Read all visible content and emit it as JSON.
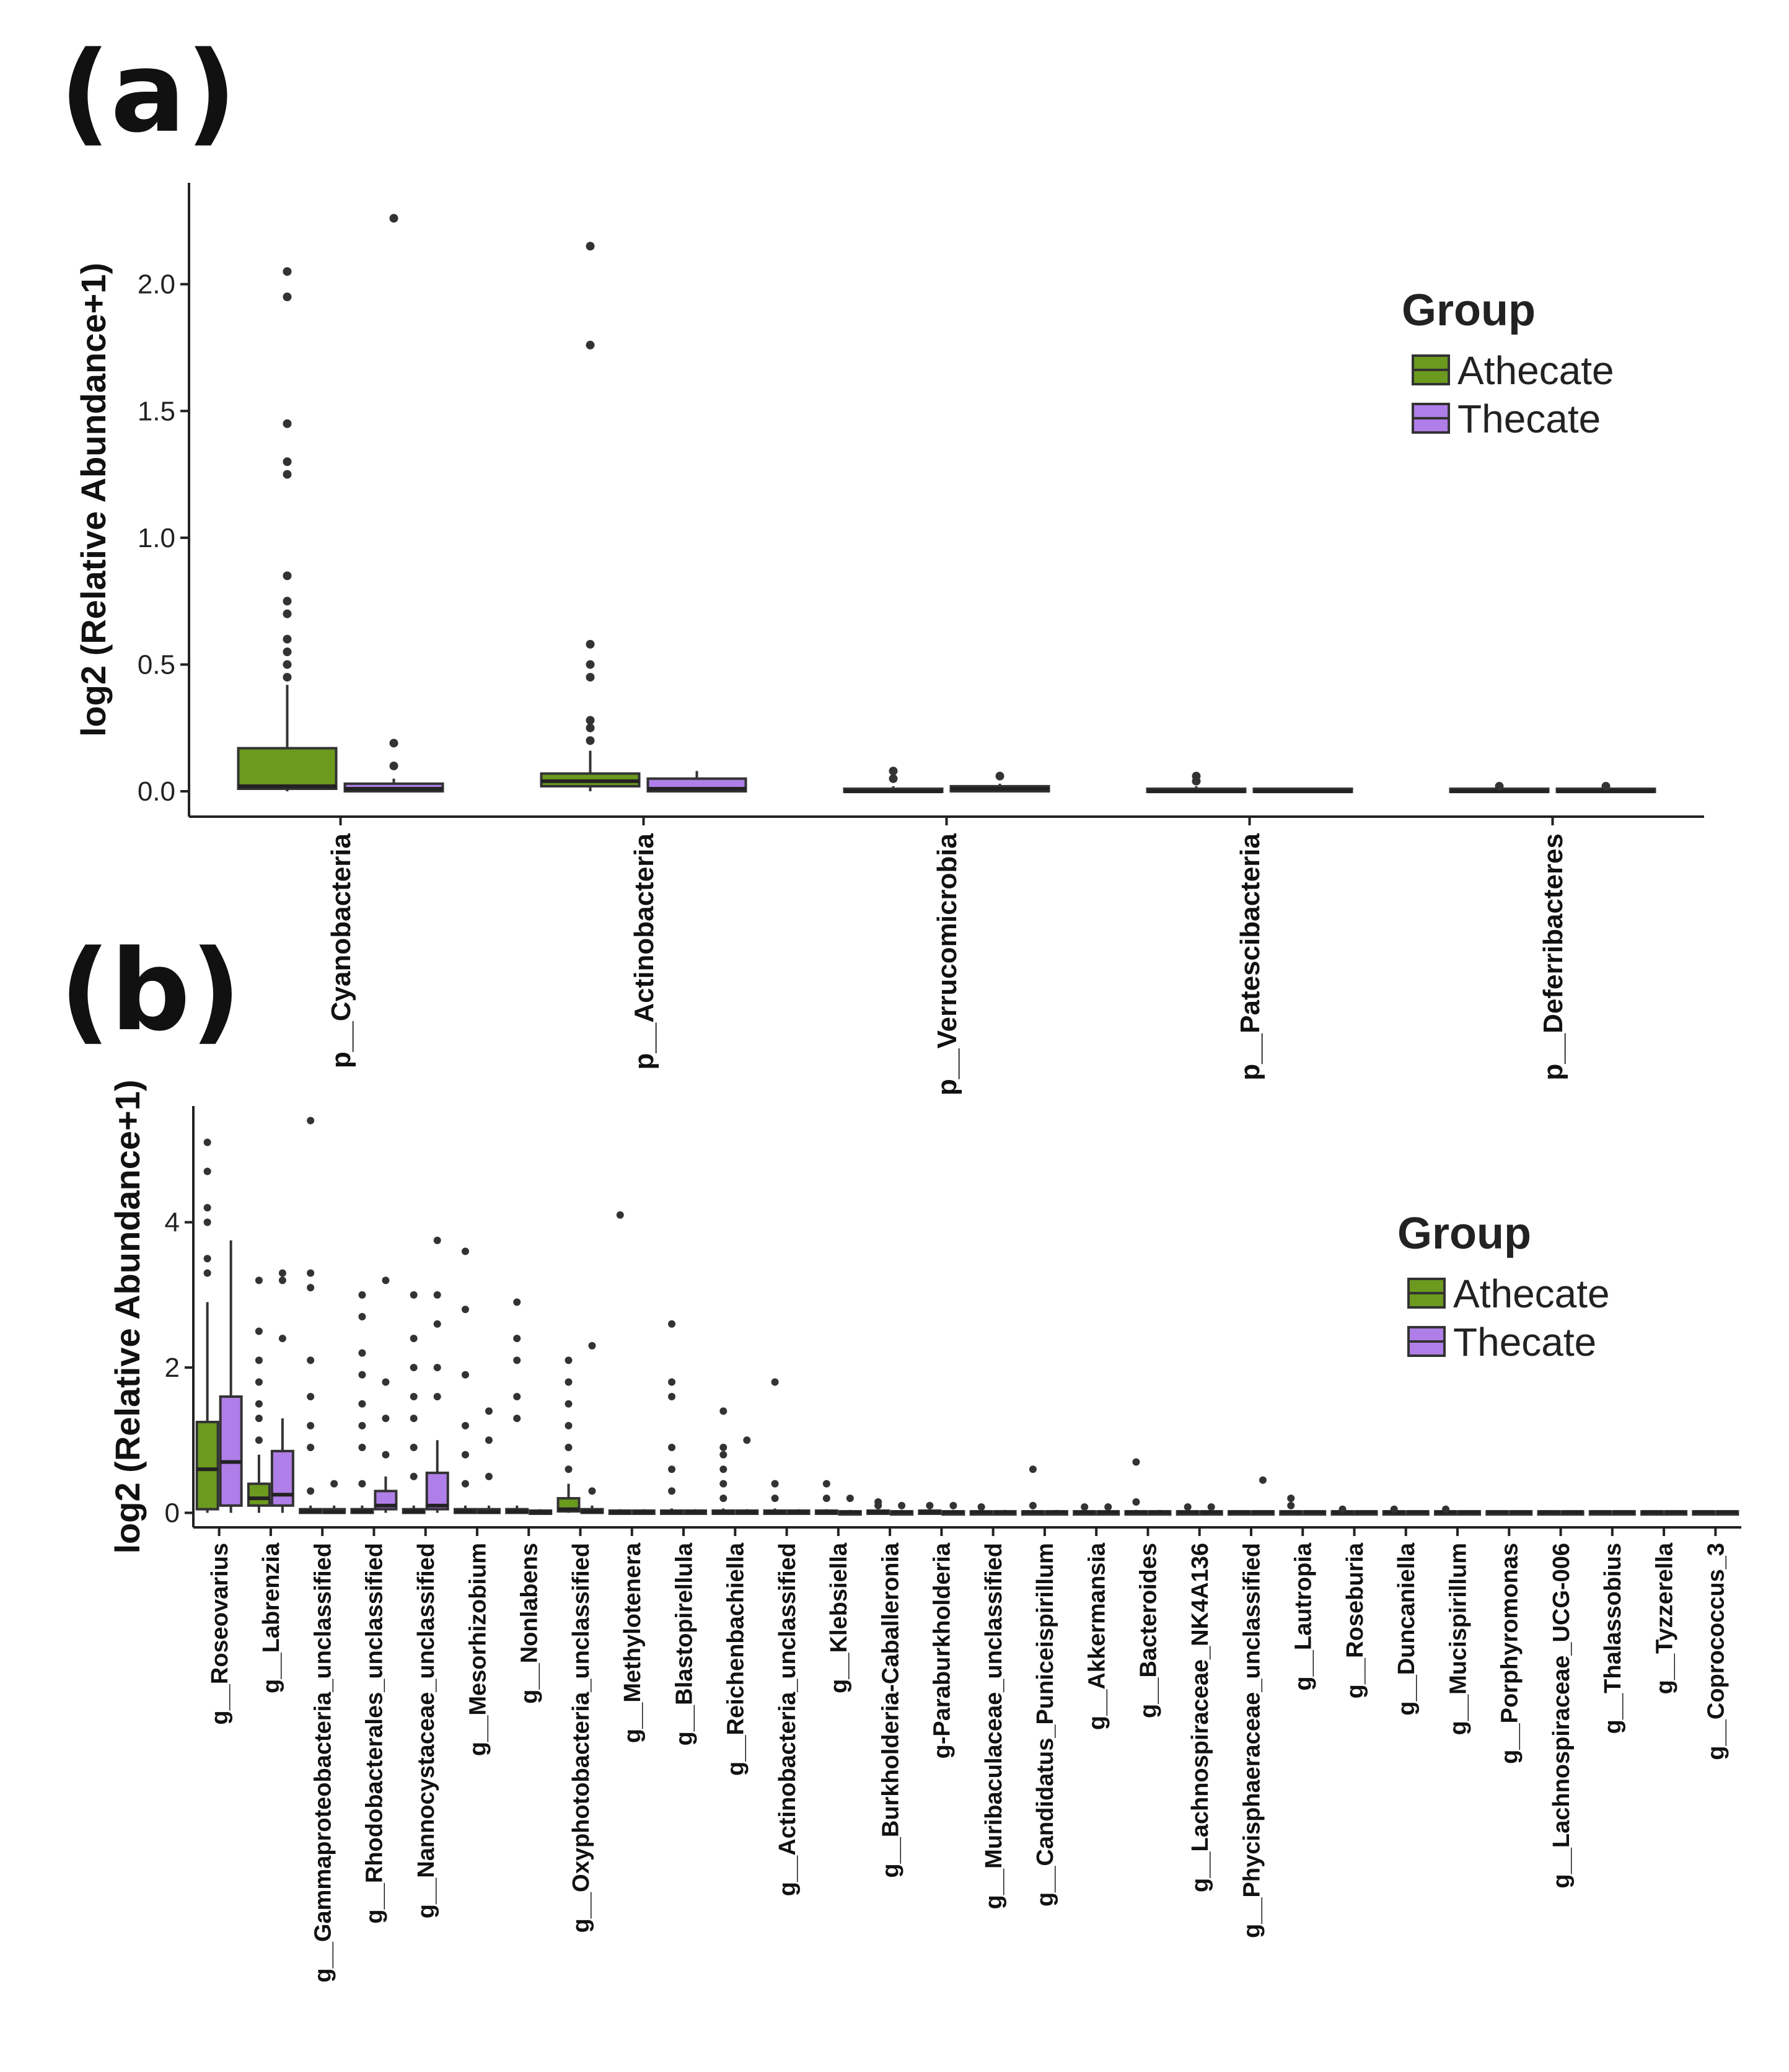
{
  "panels": {
    "a": {
      "label": "(a)"
    },
    "b": {
      "label": "(b)"
    }
  },
  "colors": {
    "Athecate": "#6b9a1f",
    "Thecate": "#b07ee8"
  },
  "chart_data": [
    {
      "id": "a",
      "type": "boxplot",
      "ylabel": "log2 (Relative Abundance+1)",
      "yticks": [
        "0.0",
        "0.5",
        "1.0",
        "1.5",
        "2.0"
      ],
      "ylim": [
        -0.1,
        2.4
      ],
      "legend": {
        "title": "Group",
        "entries": [
          "Athecate",
          "Thecate"
        ],
        "position": "right"
      },
      "categories": [
        "p__Cyanobacteria",
        "p__Actinobacteria",
        "p__Verrucomicrobia",
        "p__Patescibacteria",
        "p__Deferribacteres"
      ],
      "series": [
        {
          "name": "Athecate",
          "stats": [
            {
              "q1": 0.01,
              "median": 0.02,
              "q3": 0.17,
              "lo": 0.0,
              "hi": 0.42,
              "outliers": [
                0.45,
                0.5,
                0.55,
                0.6,
                0.7,
                0.75,
                0.85,
                1.25,
                1.3,
                1.45,
                1.95,
                2.05
              ]
            },
            {
              "q1": 0.02,
              "median": 0.04,
              "q3": 0.07,
              "lo": 0.0,
              "hi": 0.16,
              "outliers": [
                0.2,
                0.25,
                0.28,
                0.45,
                0.5,
                0.58,
                1.76,
                2.15
              ]
            },
            {
              "q1": 0.0,
              "median": 0.0,
              "q3": 0.01,
              "lo": 0.0,
              "hi": 0.02,
              "outliers": [
                0.05,
                0.08
              ]
            },
            {
              "q1": 0.0,
              "median": 0.0,
              "q3": 0.01,
              "lo": 0.0,
              "hi": 0.02,
              "outliers": [
                0.04,
                0.06
              ]
            },
            {
              "q1": 0.0,
              "median": 0.0,
              "q3": 0.01,
              "lo": 0.0,
              "hi": 0.01,
              "outliers": [
                0.02
              ]
            }
          ]
        },
        {
          "name": "Thecate",
          "stats": [
            {
              "q1": 0.0,
              "median": 0.01,
              "q3": 0.03,
              "lo": 0.0,
              "hi": 0.05,
              "outliers": [
                0.1,
                0.19,
                2.26
              ]
            },
            {
              "q1": 0.0,
              "median": 0.01,
              "q3": 0.05,
              "lo": 0.0,
              "hi": 0.08,
              "outliers": []
            },
            {
              "q1": 0.0,
              "median": 0.01,
              "q3": 0.02,
              "lo": 0.0,
              "hi": 0.03,
              "outliers": [
                0.06
              ]
            },
            {
              "q1": 0.0,
              "median": 0.0,
              "q3": 0.01,
              "lo": 0.0,
              "hi": 0.01,
              "outliers": []
            },
            {
              "q1": 0.0,
              "median": 0.0,
              "q3": 0.01,
              "lo": 0.0,
              "hi": 0.01,
              "outliers": [
                0.02
              ]
            }
          ]
        }
      ]
    },
    {
      "id": "b",
      "type": "boxplot",
      "ylabel": "log2 (Relative Abundance+1)",
      "yticks": [
        "0",
        "2",
        "4"
      ],
      "ylim": [
        -0.2,
        5.6
      ],
      "legend": {
        "title": "Group",
        "entries": [
          "Athecate",
          "Thecate"
        ],
        "position": "right"
      },
      "categories": [
        "g__Roseovarius",
        "g__Labrenzia",
        "g__Gammaproteobacteria_unclassified",
        "g__Rhodobacterales_unclassified",
        "g__Nannocystaceae_unclassified",
        "g__Mesorhizobium",
        "g__Nonlabens",
        "g__Oxyphotobacteria_unclassified",
        "g__Methylotenera",
        "g__Blastopirellula",
        "g__Reichenbachiella",
        "g__Actinobacteria_unclassified",
        "g__Klebsiella",
        "g__Burkholderia-Caballeronia",
        "g-Paraburkholderia",
        "g__Muribaculaceae_unclassified",
        "g__Candidatus_Puniceispirillum",
        "g__Akkermansia",
        "g__Bacteroides",
        "g__Lachnospiraceae_NK4A136",
        "g__Phycisphaeraceae_unclassified",
        "g__Lautropia",
        "g__Roseburia",
        "g__Duncaniella",
        "g__Mucispirillum",
        "g__Porphyromonas",
        "g__Lachnospiraceae_UCG-006",
        "g__Thalassobius",
        "g__Tyzzerella",
        "g__Coprococcus_3"
      ],
      "series": [
        {
          "name": "Athecate",
          "stats": [
            {
              "q1": 0.05,
              "median": 0.6,
              "q3": 1.25,
              "lo": 0.0,
              "hi": 2.9,
              "outliers": [
                3.3,
                3.5,
                4.0,
                4.2,
                4.7,
                5.1
              ]
            },
            {
              "q1": 0.1,
              "median": 0.2,
              "q3": 0.4,
              "lo": 0.0,
              "hi": 0.8,
              "outliers": [
                1.0,
                1.3,
                1.5,
                1.8,
                2.1,
                2.5,
                3.2
              ]
            },
            {
              "q1": 0.0,
              "median": 0.02,
              "q3": 0.05,
              "lo": 0.0,
              "hi": 0.1,
              "outliers": [
                0.3,
                0.9,
                1.2,
                1.6,
                2.1,
                3.1,
                3.3,
                5.4
              ]
            },
            {
              "q1": 0.0,
              "median": 0.02,
              "q3": 0.05,
              "lo": 0.0,
              "hi": 0.1,
              "outliers": [
                0.4,
                0.9,
                1.2,
                1.5,
                1.9,
                2.2,
                2.7,
                3.0
              ]
            },
            {
              "q1": 0.0,
              "median": 0.02,
              "q3": 0.05,
              "lo": 0.0,
              "hi": 0.1,
              "outliers": [
                0.5,
                0.9,
                1.3,
                1.6,
                2.0,
                2.4,
                3.0
              ]
            },
            {
              "q1": 0.0,
              "median": 0.02,
              "q3": 0.05,
              "lo": 0.0,
              "hi": 0.1,
              "outliers": [
                0.4,
                0.8,
                1.2,
                1.9,
                2.8,
                3.6
              ]
            },
            {
              "q1": 0.0,
              "median": 0.02,
              "q3": 0.05,
              "lo": 0.0,
              "hi": 0.1,
              "outliers": [
                1.3,
                1.6,
                2.1,
                2.4,
                2.9
              ]
            },
            {
              "q1": 0.02,
              "median": 0.05,
              "q3": 0.2,
              "lo": 0.0,
              "hi": 0.4,
              "outliers": [
                0.6,
                0.9,
                1.2,
                1.5,
                1.8,
                2.1
              ]
            },
            {
              "q1": 0.0,
              "median": 0.01,
              "q3": 0.03,
              "lo": 0.0,
              "hi": 0.05,
              "outliers": [
                4.1
              ]
            },
            {
              "q1": 0.0,
              "median": 0.01,
              "q3": 0.03,
              "lo": 0.0,
              "hi": 0.06,
              "outliers": [
                0.3,
                0.6,
                0.9,
                1.6,
                1.8,
                2.6
              ]
            },
            {
              "q1": 0.0,
              "median": 0.01,
              "q3": 0.03,
              "lo": 0.0,
              "hi": 0.06,
              "outliers": [
                0.2,
                0.4,
                0.6,
                0.8,
                0.9,
                1.4
              ]
            },
            {
              "q1": 0.0,
              "median": 0.01,
              "q3": 0.03,
              "lo": 0.0,
              "hi": 0.06,
              "outliers": [
                0.2,
                0.4,
                1.8
              ]
            },
            {
              "q1": 0.0,
              "median": 0.01,
              "q3": 0.03,
              "lo": 0.0,
              "hi": 0.05,
              "outliers": [
                0.2,
                0.4
              ]
            },
            {
              "q1": 0.0,
              "median": 0.01,
              "q3": 0.03,
              "lo": 0.0,
              "hi": 0.05,
              "outliers": [
                0.1,
                0.15
              ]
            },
            {
              "q1": 0.0,
              "median": 0.01,
              "q3": 0.03,
              "lo": 0.0,
              "hi": 0.05,
              "outliers": [
                0.1
              ]
            },
            {
              "q1": 0.0,
              "median": 0.01,
              "q3": 0.02,
              "lo": 0.0,
              "hi": 0.04,
              "outliers": [
                0.08
              ]
            },
            {
              "q1": 0.0,
              "median": 0.01,
              "q3": 0.02,
              "lo": 0.0,
              "hi": 0.04,
              "outliers": [
                0.1,
                0.6
              ]
            },
            {
              "q1": 0.0,
              "median": 0.01,
              "q3": 0.02,
              "lo": 0.0,
              "hi": 0.04,
              "outliers": [
                0.08
              ]
            },
            {
              "q1": 0.0,
              "median": 0.01,
              "q3": 0.02,
              "lo": 0.0,
              "hi": 0.04,
              "outliers": [
                0.15,
                0.7
              ]
            },
            {
              "q1": 0.0,
              "median": 0.01,
              "q3": 0.02,
              "lo": 0.0,
              "hi": 0.04,
              "outliers": [
                0.08
              ]
            },
            {
              "q1": 0.0,
              "median": 0.01,
              "q3": 0.02,
              "lo": 0.0,
              "hi": 0.03,
              "outliers": []
            },
            {
              "q1": 0.0,
              "median": 0.01,
              "q3": 0.02,
              "lo": 0.0,
              "hi": 0.03,
              "outliers": [
                0.1,
                0.2
              ]
            },
            {
              "q1": 0.0,
              "median": 0.01,
              "q3": 0.02,
              "lo": 0.0,
              "hi": 0.03,
              "outliers": [
                0.05
              ]
            },
            {
              "q1": 0.0,
              "median": 0.01,
              "q3": 0.02,
              "lo": 0.0,
              "hi": 0.03,
              "outliers": [
                0.05
              ]
            },
            {
              "q1": 0.0,
              "median": 0.01,
              "q3": 0.02,
              "lo": 0.0,
              "hi": 0.03,
              "outliers": [
                0.05
              ]
            },
            {
              "q1": 0.0,
              "median": 0.01,
              "q3": 0.02,
              "lo": 0.0,
              "hi": 0.03,
              "outliers": []
            },
            {
              "q1": 0.0,
              "median": 0.01,
              "q3": 0.02,
              "lo": 0.0,
              "hi": 0.03,
              "outliers": []
            },
            {
              "q1": 0.0,
              "median": 0.01,
              "q3": 0.02,
              "lo": 0.0,
              "hi": 0.03,
              "outliers": []
            },
            {
              "q1": 0.0,
              "median": 0.01,
              "q3": 0.02,
              "lo": 0.0,
              "hi": 0.03,
              "outliers": []
            },
            {
              "q1": 0.0,
              "median": 0.01,
              "q3": 0.02,
              "lo": 0.0,
              "hi": 0.03,
              "outliers": []
            }
          ]
        },
        {
          "name": "Thecate",
          "stats": [
            {
              "q1": 0.1,
              "median": 0.7,
              "q3": 1.6,
              "lo": 0.0,
              "hi": 3.75,
              "outliers": []
            },
            {
              "q1": 0.1,
              "median": 0.25,
              "q3": 0.85,
              "lo": 0.0,
              "hi": 1.3,
              "outliers": [
                2.4,
                3.2,
                3.3
              ]
            },
            {
              "q1": 0.0,
              "median": 0.01,
              "q3": 0.05,
              "lo": 0.0,
              "hi": 0.1,
              "outliers": [
                0.4
              ]
            },
            {
              "q1": 0.05,
              "median": 0.1,
              "q3": 0.3,
              "lo": 0.0,
              "hi": 0.5,
              "outliers": [
                0.8,
                1.3,
                1.8,
                3.2
              ]
            },
            {
              "q1": 0.05,
              "median": 0.1,
              "q3": 0.55,
              "lo": 0.0,
              "hi": 1.0,
              "outliers": [
                1.6,
                2.0,
                2.6,
                3.0,
                3.75
              ]
            },
            {
              "q1": 0.0,
              "median": 0.01,
              "q3": 0.05,
              "lo": 0.0,
              "hi": 0.1,
              "outliers": [
                0.5,
                1.0,
                1.4
              ]
            },
            {
              "q1": 0.0,
              "median": 0.01,
              "q3": 0.03,
              "lo": 0.0,
              "hi": 0.05,
              "outliers": []
            },
            {
              "q1": 0.0,
              "median": 0.02,
              "q3": 0.05,
              "lo": 0.0,
              "hi": 0.1,
              "outliers": [
                0.3,
                2.3
              ]
            },
            {
              "q1": 0.0,
              "median": 0.01,
              "q3": 0.03,
              "lo": 0.0,
              "hi": 0.05,
              "outliers": []
            },
            {
              "q1": 0.0,
              "median": 0.01,
              "q3": 0.03,
              "lo": 0.0,
              "hi": 0.05,
              "outliers": []
            },
            {
              "q1": 0.0,
              "median": 0.01,
              "q3": 0.03,
              "lo": 0.0,
              "hi": 0.05,
              "outliers": [
                1.0
              ]
            },
            {
              "q1": 0.0,
              "median": 0.01,
              "q3": 0.03,
              "lo": 0.0,
              "hi": 0.05,
              "outliers": []
            },
            {
              "q1": 0.0,
              "median": 0.01,
              "q3": 0.02,
              "lo": 0.0,
              "hi": 0.04,
              "outliers": [
                0.2
              ]
            },
            {
              "q1": 0.0,
              "median": 0.01,
              "q3": 0.02,
              "lo": 0.0,
              "hi": 0.04,
              "outliers": [
                0.1
              ]
            },
            {
              "q1": 0.0,
              "median": 0.01,
              "q3": 0.02,
              "lo": 0.0,
              "hi": 0.04,
              "outliers": [
                0.1
              ]
            },
            {
              "q1": 0.0,
              "median": 0.01,
              "q3": 0.02,
              "lo": 0.0,
              "hi": 0.04,
              "outliers": []
            },
            {
              "q1": 0.0,
              "median": 0.01,
              "q3": 0.02,
              "lo": 0.0,
              "hi": 0.04,
              "outliers": []
            },
            {
              "q1": 0.0,
              "median": 0.01,
              "q3": 0.02,
              "lo": 0.0,
              "hi": 0.04,
              "outliers": [
                0.08
              ]
            },
            {
              "q1": 0.0,
              "median": 0.01,
              "q3": 0.02,
              "lo": 0.0,
              "hi": 0.04,
              "outliers": []
            },
            {
              "q1": 0.0,
              "median": 0.01,
              "q3": 0.02,
              "lo": 0.0,
              "hi": 0.04,
              "outliers": [
                0.08
              ]
            },
            {
              "q1": 0.0,
              "median": 0.01,
              "q3": 0.02,
              "lo": 0.0,
              "hi": 0.03,
              "outliers": [
                0.45
              ]
            },
            {
              "q1": 0.0,
              "median": 0.01,
              "q3": 0.02,
              "lo": 0.0,
              "hi": 0.03,
              "outliers": []
            },
            {
              "q1": 0.0,
              "median": 0.01,
              "q3": 0.02,
              "lo": 0.0,
              "hi": 0.03,
              "outliers": []
            },
            {
              "q1": 0.0,
              "median": 0.01,
              "q3": 0.02,
              "lo": 0.0,
              "hi": 0.03,
              "outliers": []
            },
            {
              "q1": 0.0,
              "median": 0.01,
              "q3": 0.02,
              "lo": 0.0,
              "hi": 0.03,
              "outliers": []
            },
            {
              "q1": 0.0,
              "median": 0.01,
              "q3": 0.02,
              "lo": 0.0,
              "hi": 0.03,
              "outliers": []
            },
            {
              "q1": 0.0,
              "median": 0.01,
              "q3": 0.02,
              "lo": 0.0,
              "hi": 0.03,
              "outliers": []
            },
            {
              "q1": 0.0,
              "median": 0.01,
              "q3": 0.02,
              "lo": 0.0,
              "hi": 0.03,
              "outliers": []
            },
            {
              "q1": 0.0,
              "median": 0.01,
              "q3": 0.02,
              "lo": 0.0,
              "hi": 0.03,
              "outliers": []
            },
            {
              "q1": 0.0,
              "median": 0.01,
              "q3": 0.02,
              "lo": 0.0,
              "hi": 0.03,
              "outliers": []
            }
          ]
        }
      ]
    }
  ]
}
